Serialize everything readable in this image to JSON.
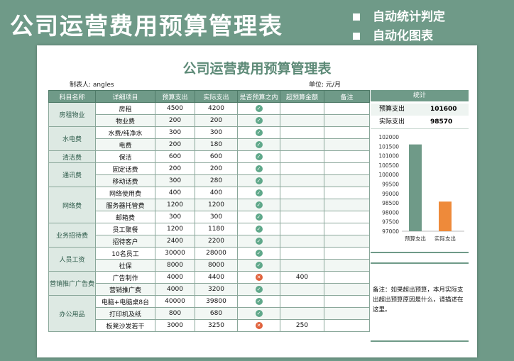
{
  "banner": {
    "title": "公司运营费用预算管理表",
    "features": [
      "自动统计判定",
      "自动化图表"
    ]
  },
  "sheet": {
    "title": "公司运营费用预算管理表",
    "maker_label": "制表人:",
    "maker_value": "angles",
    "unit_label": "单位:",
    "unit_value": "元/月"
  },
  "table": {
    "headers": [
      "科目名称",
      "详细项目",
      "预算支出",
      "实际支出",
      "是否预算之内",
      "超预算金额",
      "备注"
    ],
    "groups": [
      {
        "category": "房租物业",
        "rows": [
          {
            "item": "房租",
            "budget": "4500",
            "actual": "4200",
            "within": "ok",
            "over": "",
            "note": ""
          },
          {
            "item": "物业费",
            "budget": "200",
            "actual": "200",
            "within": "ok",
            "over": "",
            "note": ""
          }
        ]
      },
      {
        "category": "水电费",
        "rows": [
          {
            "item": "水费/纯净水",
            "budget": "300",
            "actual": "300",
            "within": "ok",
            "over": "",
            "note": ""
          },
          {
            "item": "电费",
            "budget": "200",
            "actual": "180",
            "within": "ok",
            "over": "",
            "note": ""
          }
        ]
      },
      {
        "category": "清洁费",
        "rows": [
          {
            "item": "保洁",
            "budget": "600",
            "actual": "600",
            "within": "ok",
            "over": "",
            "note": ""
          }
        ]
      },
      {
        "category": "通讯费",
        "rows": [
          {
            "item": "固定话费",
            "budget": "200",
            "actual": "200",
            "within": "ok",
            "over": "",
            "note": ""
          },
          {
            "item": "移动话费",
            "budget": "300",
            "actual": "280",
            "within": "ok",
            "over": "",
            "note": ""
          }
        ]
      },
      {
        "category": "网络费",
        "rows": [
          {
            "item": "网络使用费",
            "budget": "400",
            "actual": "400",
            "within": "ok",
            "over": "",
            "note": ""
          },
          {
            "item": "服务器托管费",
            "budget": "1200",
            "actual": "1200",
            "within": "ok",
            "over": "",
            "note": ""
          },
          {
            "item": "邮箱费",
            "budget": "300",
            "actual": "300",
            "within": "ok",
            "over": "",
            "note": ""
          }
        ]
      },
      {
        "category": "业务招待费",
        "rows": [
          {
            "item": "员工聚餐",
            "budget": "1200",
            "actual": "1180",
            "within": "ok",
            "over": "",
            "note": ""
          },
          {
            "item": "招待客户",
            "budget": "2400",
            "actual": "2200",
            "within": "ok",
            "over": "",
            "note": ""
          }
        ]
      },
      {
        "category": "人员工资",
        "rows": [
          {
            "item": "10名员工",
            "budget": "30000",
            "actual": "28000",
            "within": "ok",
            "over": "",
            "note": ""
          },
          {
            "item": "社保",
            "budget": "8000",
            "actual": "8000",
            "within": "ok",
            "over": "",
            "note": ""
          }
        ]
      },
      {
        "category": "营销推广广告费",
        "rows": [
          {
            "item": "广告制作",
            "budget": "4000",
            "actual": "4400",
            "within": "bad",
            "over": "400",
            "note": ""
          },
          {
            "item": "营销推广费",
            "budget": "4000",
            "actual": "3200",
            "within": "ok",
            "over": "",
            "note": ""
          }
        ]
      },
      {
        "category": "办公用品",
        "rows": [
          {
            "item": "电脑+电脑桌8台",
            "budget": "40000",
            "actual": "39800",
            "within": "ok",
            "over": "",
            "note": ""
          },
          {
            "item": "打印机及纸",
            "budget": "800",
            "actual": "680",
            "within": "ok",
            "over": "",
            "note": ""
          },
          {
            "item": "板凳沙发若干",
            "budget": "3000",
            "actual": "3250",
            "within": "bad",
            "over": "250",
            "note": ""
          }
        ]
      }
    ]
  },
  "stats": {
    "title": "统计",
    "budget_label": "预算支出",
    "budget_value": "101600",
    "actual_label": "实际支出",
    "actual_value": "98570"
  },
  "chart_data": {
    "type": "bar",
    "categories": [
      "预算支出",
      "实际支出"
    ],
    "values": [
      101600,
      98570
    ],
    "colors": [
      "#6f9a88",
      "#ee8a3a"
    ],
    "ylim": [
      97000,
      102000
    ],
    "yticks": [
      97000,
      97500,
      98000,
      98500,
      99000,
      99500,
      100000,
      100500,
      101000,
      101500,
      102000
    ],
    "grid": false
  },
  "note": "备注：如果超出预算，本月实际支出超出预算原因是什么，请描述在这里。",
  "colors": {
    "accent": "#6f9a88",
    "ok": "#5fa88a",
    "over": "#e0603a",
    "bar_actual": "#ee8a3a"
  }
}
